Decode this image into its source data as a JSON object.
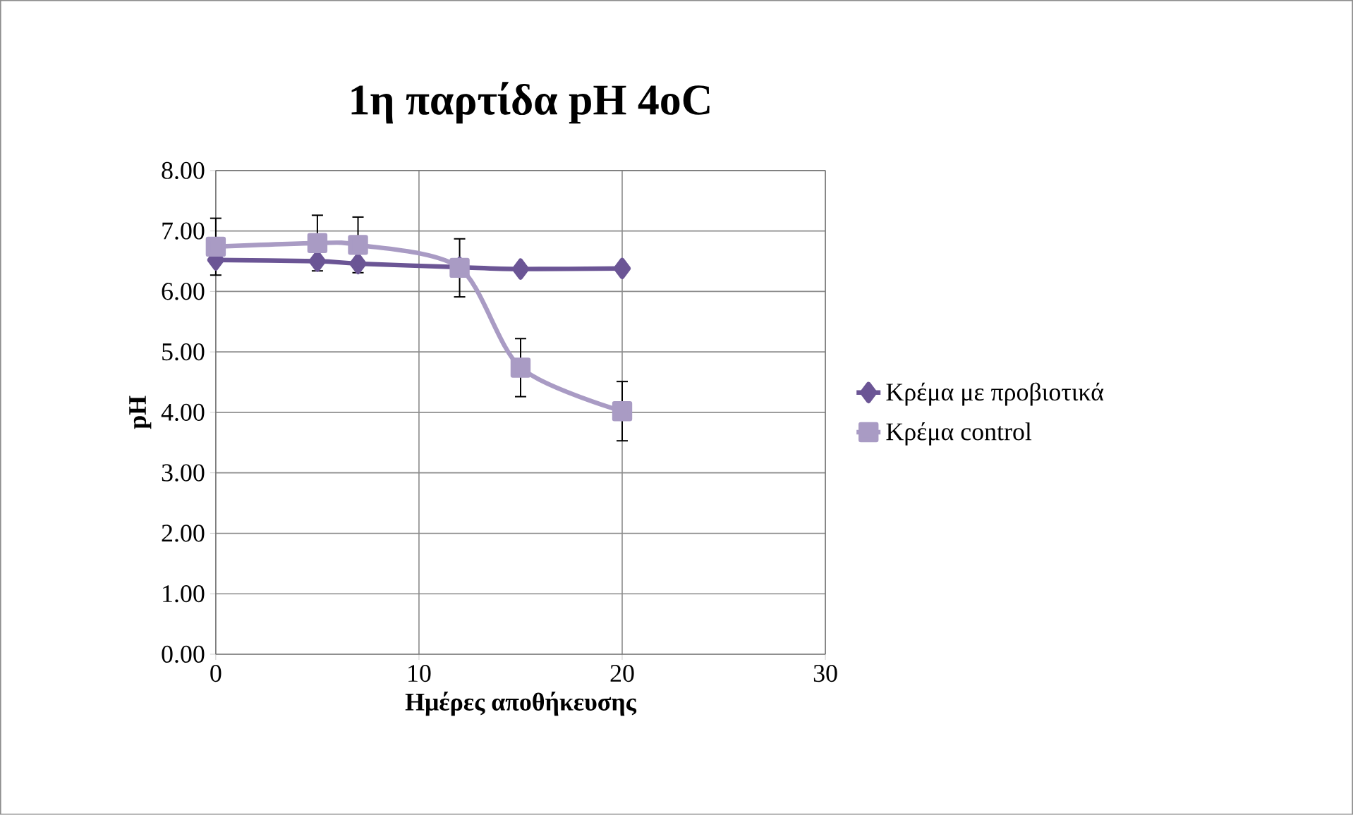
{
  "chart_data": {
    "type": "line",
    "title": "1η παρτίδα pH 4oC",
    "xlabel": "Ημέρες αποθήκευσης",
    "ylabel": "pH",
    "xlim": [
      0,
      30
    ],
    "xticks": [
      0,
      10,
      20,
      30
    ],
    "ylim": [
      0,
      8
    ],
    "yticks": [
      {
        "value": 0,
        "label": "0.00"
      },
      {
        "value": 1,
        "label": "1.00"
      },
      {
        "value": 2,
        "label": "2.00"
      },
      {
        "value": 3,
        "label": "3.00"
      },
      {
        "value": 4,
        "label": "4.00"
      },
      {
        "value": 5,
        "label": "5.00"
      },
      {
        "value": 6,
        "label": "6.00"
      },
      {
        "value": 7,
        "label": "7.00"
      },
      {
        "value": 8,
        "label": "8.00"
      }
    ],
    "grid": true,
    "legend": "right",
    "series": [
      {
        "name": "Κρέμα με προβιοτικά",
        "color": "#6b5595",
        "marker": "diamond",
        "x": [
          0,
          5,
          7,
          12,
          15,
          20
        ],
        "values": [
          6.52,
          6.5,
          6.46,
          6.4,
          6.37,
          6.38
        ]
      },
      {
        "name": "Κρέμα control",
        "color": "#a99bc4",
        "marker": "square",
        "x": [
          0,
          5,
          7,
          12,
          15,
          20
        ],
        "values": [
          6.74,
          6.8,
          6.77,
          6.39,
          4.74,
          4.02
        ],
        "errors": [
          0.47,
          0.46,
          0.46,
          0.48,
          0.48,
          0.49
        ]
      }
    ]
  }
}
